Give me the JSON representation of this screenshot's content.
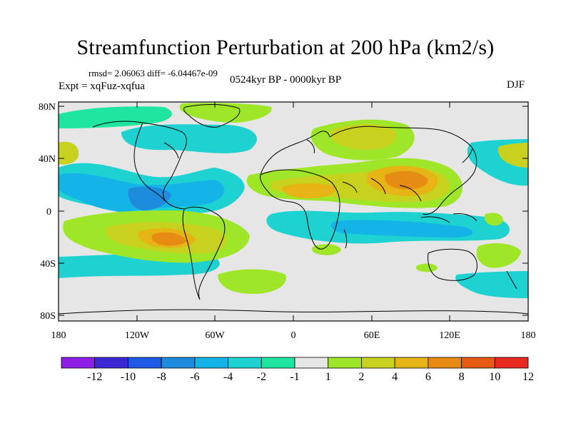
{
  "header": {
    "title": "Streamfunction Perturbation at 200 hPa (km2/s)",
    "stats": "rmsd= 2.06063 diff= -6.04467e-09",
    "experiment": "Expt = xqFuz-xqfua",
    "period": "0524kyr BP - 0000kyr BP",
    "season": "DJF"
  },
  "axes": {
    "lat_labels": [
      "80N",
      "40N",
      "0",
      "40S",
      "80S"
    ],
    "lon_labels": [
      "180",
      "120W",
      "60W",
      "0",
      "60E",
      "120E",
      "180"
    ]
  },
  "colorbar": {
    "labels": [
      "-12",
      "-10",
      "-8",
      "-6",
      "-4",
      "-2",
      "-1",
      "1",
      "2",
      "4",
      "6",
      "8",
      "10",
      "12"
    ],
    "colors": [
      "#8c1ee6",
      "#3c28d2",
      "#1e5ae6",
      "#1e8cdc",
      "#14b4e6",
      "#1ed2d2",
      "#1ee6a0",
      "#e6e6e6",
      "#a0e628",
      "#c8d21e",
      "#e6b414",
      "#e68c14",
      "#e65a14",
      "#e6281e"
    ]
  },
  "map_fields": [
    {
      "lon": 60,
      "lat": 45,
      "value": 4
    },
    {
      "lon": 95,
      "lat": 28,
      "value": 7
    },
    {
      "lon": 0,
      "lat": 15,
      "value": 4
    },
    {
      "lon": -95,
      "lat": -22,
      "value": 7
    },
    {
      "lon": -140,
      "lat": 20,
      "value": -5
    },
    {
      "lon": -125,
      "lat": 6,
      "value": -6
    },
    {
      "lon": -80,
      "lat": 65,
      "value": -3
    },
    {
      "lon": -40,
      "lat": 40,
      "value": -2
    },
    {
      "lon": 20,
      "lat": -10,
      "value": -2
    },
    {
      "lon": 80,
      "lat": -12,
      "value": -4
    },
    {
      "lon": 160,
      "lat": 40,
      "value": -3
    },
    {
      "lon": 150,
      "lat": -10,
      "value": -2
    },
    {
      "lon": -35,
      "lat": -50,
      "value": 2
    },
    {
      "lon": 150,
      "lat": -30,
      "value": 3
    },
    {
      "lon": -50,
      "lat": 75,
      "value": 2
    }
  ]
}
